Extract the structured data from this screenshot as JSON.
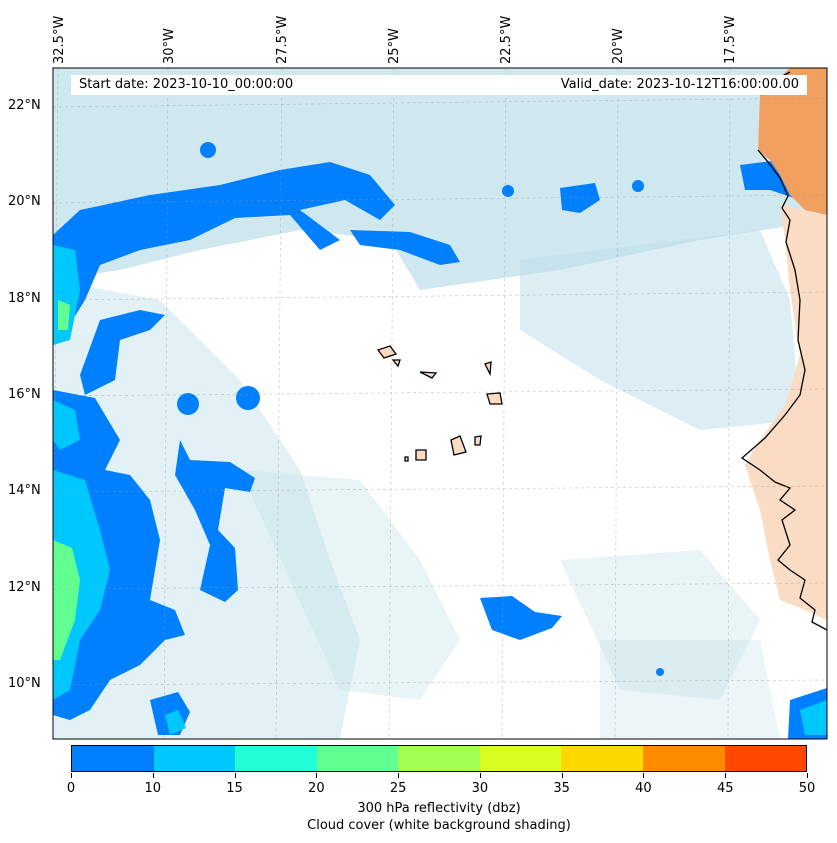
{
  "header": {
    "start_date": "Start date: 2023-10-10_00:00:00",
    "valid_date": "Valid_date: 2023-10-12T16:00:00.00"
  },
  "longitude_labels": [
    "32.5°W",
    "30°W",
    "27.5°W",
    "25°W",
    "22.5°W",
    "20°W",
    "17.5°W"
  ],
  "latitude_labels": [
    "22°N",
    "20°N",
    "18°N",
    "16°N",
    "14°N",
    "12°N",
    "10°N"
  ],
  "colorbar": {
    "ticks": [
      "0",
      "10",
      "15",
      "20",
      "25",
      "30",
      "35",
      "40",
      "45",
      "50"
    ],
    "colors": [
      "#0080ff",
      "#00c8ff",
      "#20ffd8",
      "#60ff90",
      "#a0ff50",
      "#d8ff20",
      "#ffd800",
      "#ff8c00",
      "#ff4800"
    ],
    "label": "300 hPa reflectivity (dbz)",
    "sublabel": "Cloud cover (white background shading)"
  },
  "map_colors": {
    "reflectivity_low": "#0080ff",
    "reflectivity_mid": "#00c8ff",
    "reflectivity_high": "#60ff90",
    "cloud": "#bfdfe9",
    "land_sahara": "#f2a060",
    "land_sahel": "#f9dcc3"
  }
}
